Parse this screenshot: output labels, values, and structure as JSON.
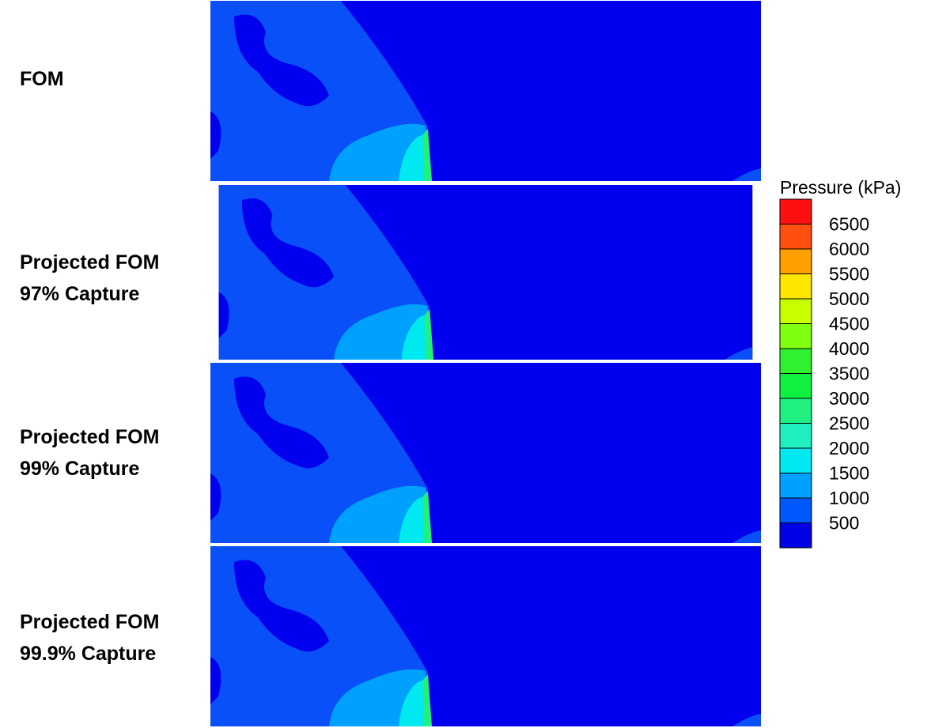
{
  "panels": [
    {
      "label": [
        "FOM"
      ]
    },
    {
      "label": [
        "Projected FOM",
        "97% Capture"
      ]
    },
    {
      "label": [
        "Projected FOM",
        "99% Capture"
      ]
    },
    {
      "label": [
        "Projected FOM",
        "99.9% Capture"
      ]
    }
  ],
  "colorbar": {
    "title": "Pressure (kPa)",
    "levels": [
      6500,
      6000,
      5500,
      5000,
      4500,
      4000,
      3500,
      3000,
      2500,
      2000,
      1500,
      1000,
      500
    ],
    "colors": [
      "#ff1010",
      "#ff5010",
      "#ffa000",
      "#ffe600",
      "#c8ff00",
      "#80ff10",
      "#30f030",
      "#10f040",
      "#20f080",
      "#20f0c0",
      "#00e8f0",
      "#00a0ff",
      "#0058ff",
      "#0000e6"
    ]
  }
}
